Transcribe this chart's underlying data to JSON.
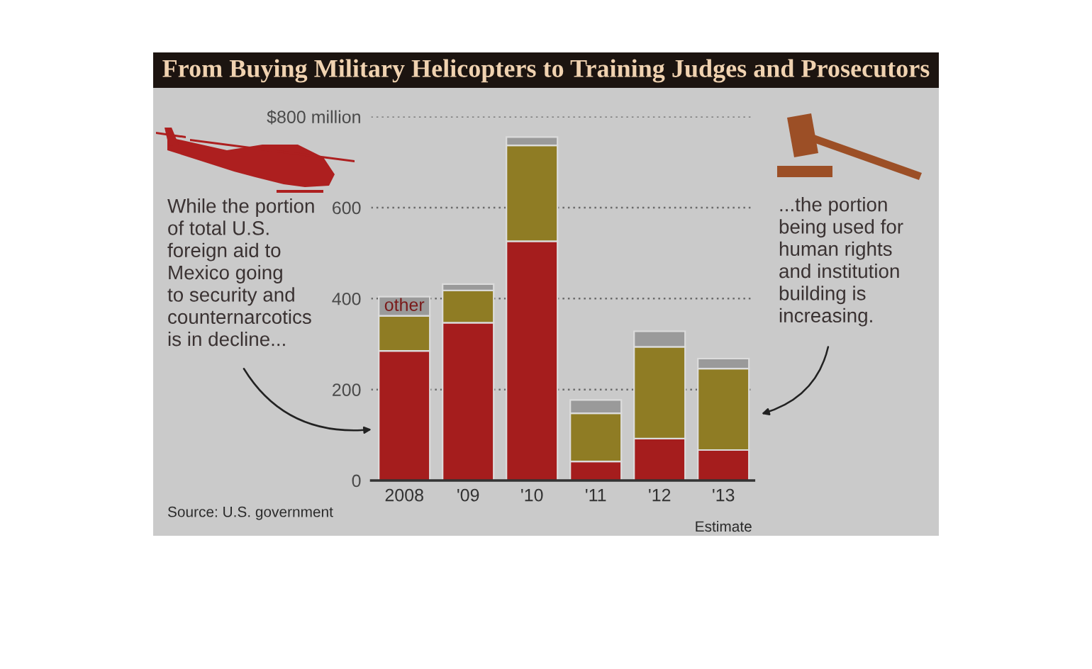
{
  "chart_data": {
    "type": "bar",
    "title": "From Buying Military Helicopters to Training Judges and Prosecutors",
    "categories": [
      "2008",
      "'09",
      "'10",
      "'11",
      "'12",
      "'13"
    ],
    "stacked": true,
    "series": [
      {
        "color": "#a51d1d",
        "values": [
          285,
          347,
          526,
          42,
          92,
          67
        ]
      },
      {
        "color": "#8f7c24",
        "values": [
          77,
          71,
          211,
          106,
          202,
          179
        ]
      },
      {
        "name": "other",
        "color": "#9a9a9a",
        "values": [
          42,
          14,
          18,
          29,
          34,
          22
        ]
      }
    ],
    "ylim": [
      0,
      800
    ],
    "yticks": [
      0,
      200,
      400,
      600,
      {
        "value": 800,
        "label": "$800 million"
      }
    ],
    "grid": "y",
    "annotations": [
      "While the portion\nof total U.S.\nforeign aid to\nMexico going\nto security and\ncounternarcotics\nis in decline...",
      "...the portion\nbeing used for\nhuman rights\nand institution\nbuilding is\nincreasing.",
      "Estimate",
      "Source: U.S. government"
    ]
  }
}
